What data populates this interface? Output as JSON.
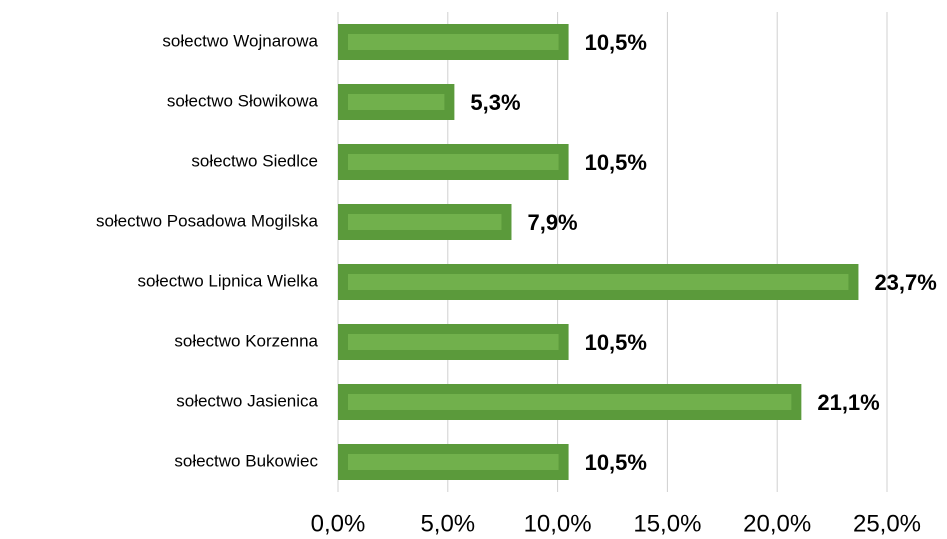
{
  "chart_data": {
    "type": "barh",
    "categories": [
      "sołectwo Wojnarowa",
      "sołectwo Słowikowa",
      "sołectwo Siedlce",
      "sołectwo Posadowa Mogilska",
      "sołectwo Lipnica Wielka",
      "sołectwo Korzenna",
      "sołectwo Jasienica",
      "sołectwo Bukowiec"
    ],
    "values": [
      10.5,
      5.3,
      10.5,
      7.9,
      23.7,
      10.5,
      21.1,
      10.5
    ],
    "value_labels": [
      "10,5%",
      "5,3%",
      "10,5%",
      "7,9%",
      "23,7%",
      "10,5%",
      "21,1%",
      "10,5%"
    ],
    "color": "#5b9a3b",
    "xlim": [
      0,
      25
    ],
    "xticks": [
      {
        "value": 0,
        "label": "0,0%"
      },
      {
        "value": 5,
        "label": "5,0%"
      },
      {
        "value": 10,
        "label": "10,0%"
      },
      {
        "value": 15,
        "label": "15,0%"
      },
      {
        "value": 20,
        "label": "20,0%"
      },
      {
        "value": 25,
        "label": "25,0%"
      }
    ],
    "grid": true
  }
}
